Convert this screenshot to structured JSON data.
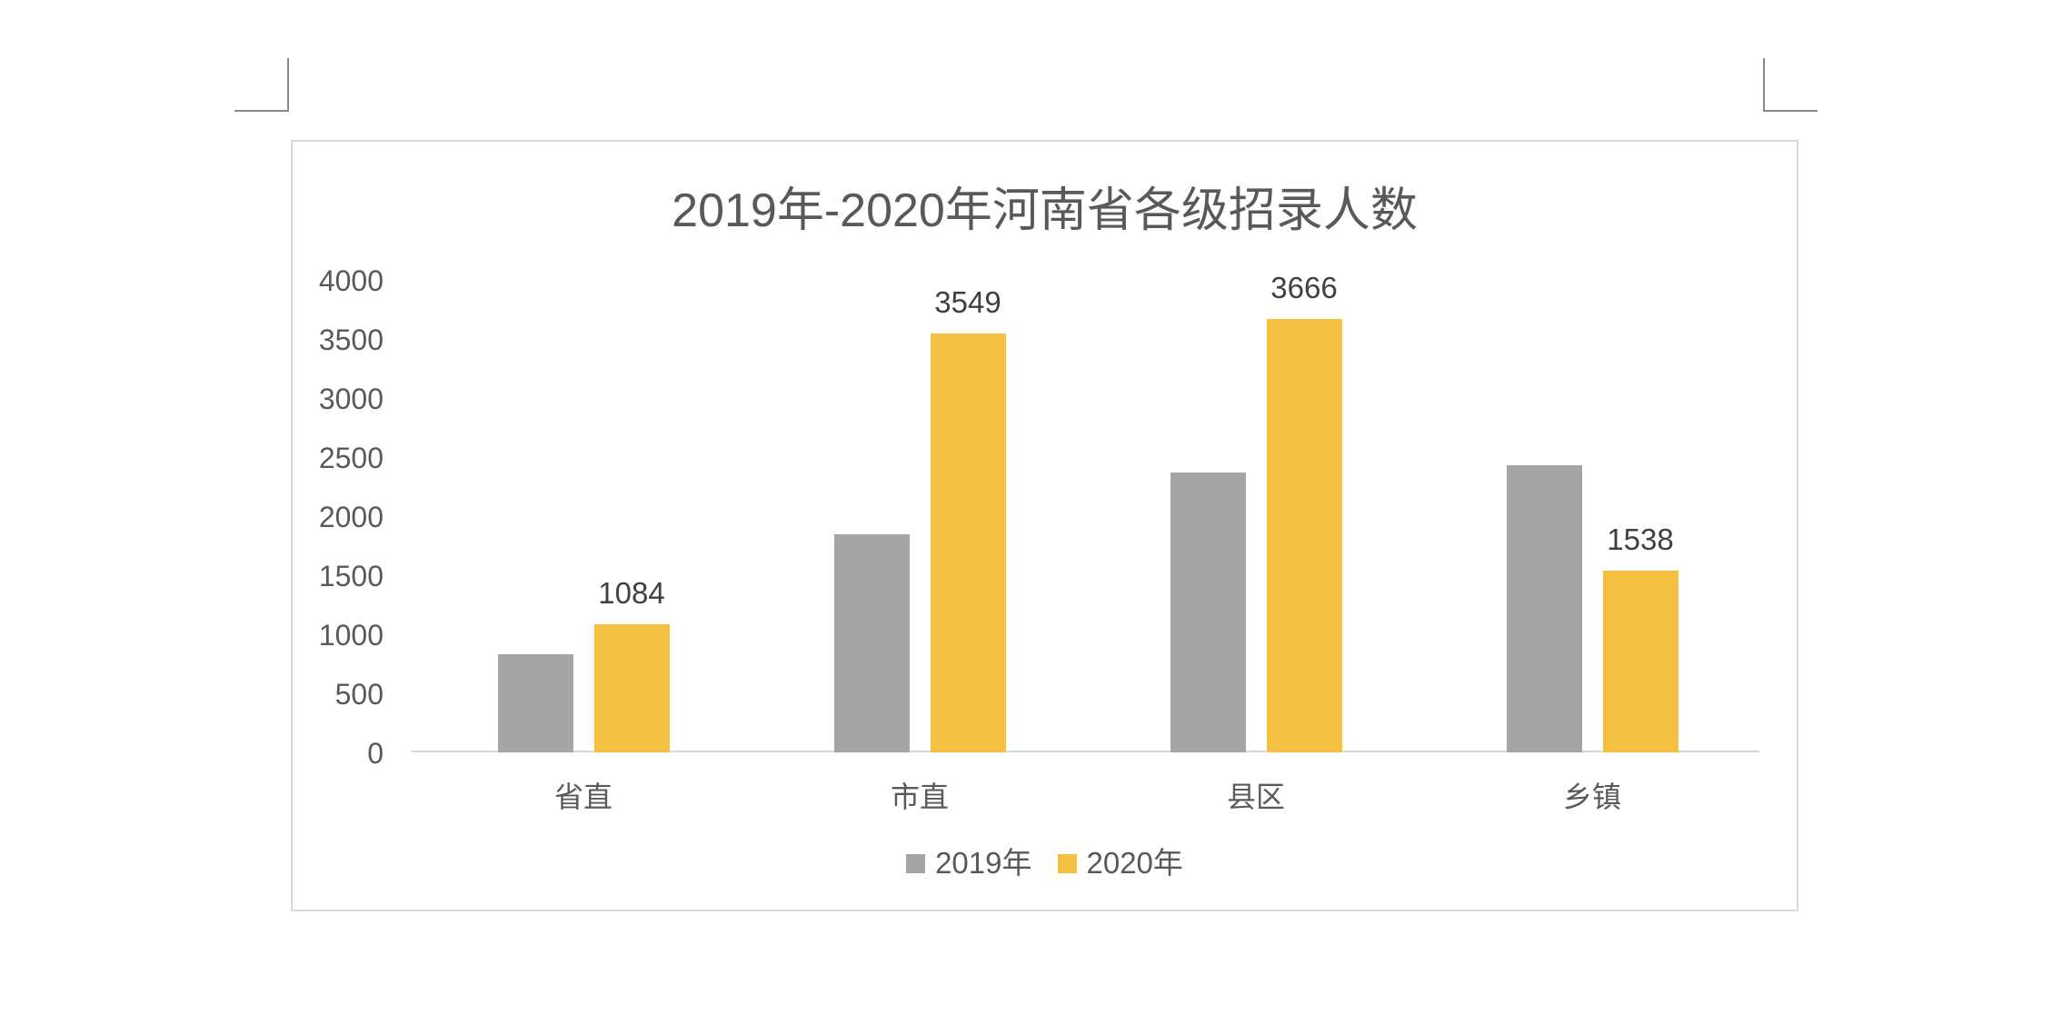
{
  "page": {
    "corner_marks": [
      "top-left",
      "top-right"
    ]
  },
  "colors": {
    "series_2019": "#a5a5a5",
    "series_2020": "#f4c042",
    "text": "#595959",
    "axis": "#d9d9d9",
    "border": "#d9d9d9"
  },
  "chart_data": {
    "type": "bar",
    "title": "2019年-2020年河南省各级招录人数",
    "xlabel": "",
    "ylabel": "",
    "categories": [
      "省直",
      "市直",
      "县区",
      "乡镇"
    ],
    "series": [
      {
        "name": "2019年",
        "values": [
          830,
          1850,
          2370,
          2430
        ],
        "color": "#a5a5a5",
        "data_labels": false
      },
      {
        "name": "2020年",
        "values": [
          1084,
          3549,
          3666,
          1538
        ],
        "color": "#f4c042",
        "data_labels": true
      }
    ],
    "ylim": [
      0,
      4000
    ],
    "yticks": [
      "4000",
      "3500",
      "3000",
      "2500",
      "2000",
      "1500",
      "1000",
      "500",
      "0"
    ],
    "grid": false,
    "legend_position": "bottom"
  },
  "labels": {
    "data_2020": [
      "1084",
      "3549",
      "3666",
      "1538"
    ]
  },
  "legend": {
    "items": [
      {
        "label": "2019年"
      },
      {
        "label": "2020年"
      }
    ]
  }
}
